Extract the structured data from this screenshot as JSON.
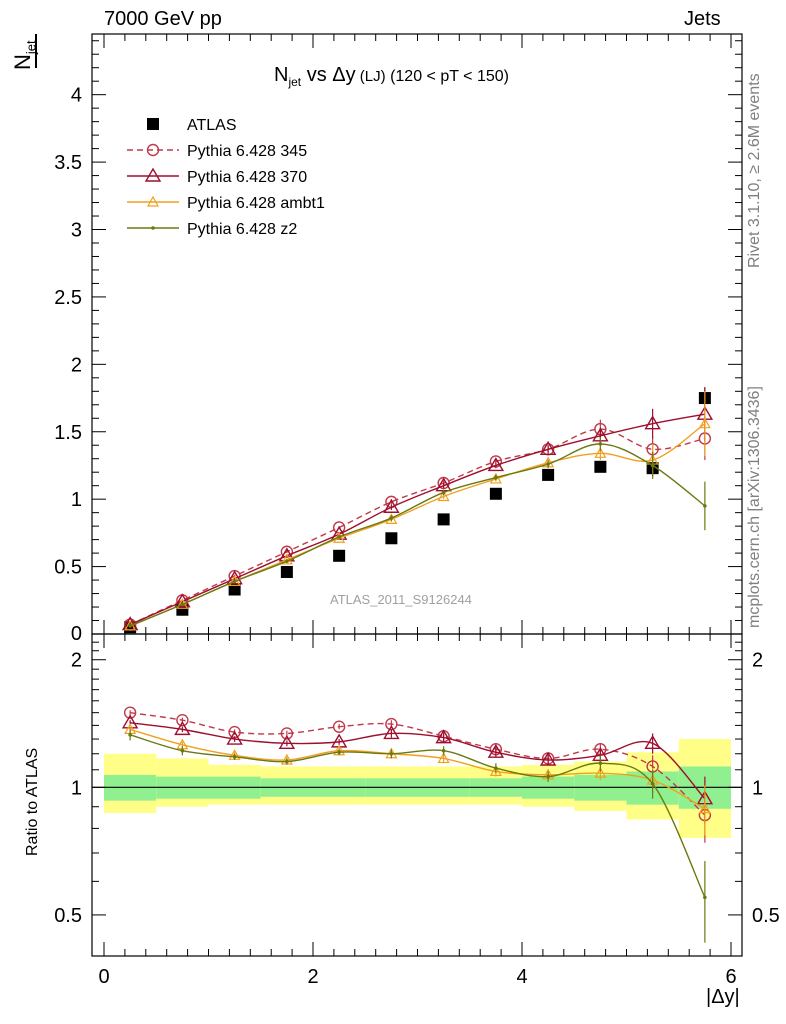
{
  "header": {
    "left_label": "7000 GeV pp",
    "right_label": "Jets"
  },
  "side_labels": {
    "top": "Rivet 3.1.10, ≥ 2.6M events",
    "bottom": "mcplots.cern.ch [arXiv:1306.3436]"
  },
  "chart_data": [
    {
      "type": "scatter",
      "panel": "main",
      "title": "N_jet vs Δy (LJ) (120 < pT < 150)",
      "title_parts": {
        "main": "N",
        "sub": "jet",
        "vs": " vs Δy",
        "small": " (LJ)",
        "range": " (120 < pT < 150)"
      },
      "ylabel": "N_jet",
      "ylabel_parts": {
        "main": "N",
        "sub": "jet"
      },
      "watermark": "ATLAS_2011_S9126244",
      "xlim": [
        0,
        6
      ],
      "ylim": [
        0,
        4.45
      ],
      "yticks": [
        0,
        0.5,
        1,
        1.5,
        2,
        2.5,
        3,
        3.5,
        4
      ],
      "ytick_labels": [
        "0",
        "0.5",
        "1",
        "1.5",
        "2",
        "2.5",
        "3",
        "3.5",
        "4"
      ],
      "x": [
        0.25,
        0.75,
        1.25,
        1.75,
        2.25,
        2.75,
        3.25,
        3.75,
        4.25,
        4.75,
        5.25,
        5.75
      ],
      "legend_position": "top-left",
      "series": [
        {
          "name": "ATLAS",
          "color": "#000000",
          "marker": "square",
          "values": [
            0.05,
            0.18,
            0.33,
            0.46,
            0.58,
            0.71,
            0.85,
            1.04,
            1.18,
            1.24,
            1.23,
            1.75
          ],
          "errors": [
            0.01,
            0.01,
            0.01,
            0.01,
            0.01,
            0.01,
            0.02,
            0.02,
            0.03,
            0.04,
            0.06,
            0.08
          ]
        },
        {
          "name": "Pythia 6.428 345",
          "color": "#c0394b",
          "marker": "open-circle",
          "dashed": true,
          "values": [
            0.07,
            0.25,
            0.43,
            0.61,
            0.79,
            0.98,
            1.12,
            1.28,
            1.37,
            1.52,
            1.37,
            1.45
          ],
          "errors": [
            0.01,
            0.01,
            0.01,
            0.01,
            0.01,
            0.02,
            0.02,
            0.02,
            0.03,
            0.07,
            0.1,
            0.16
          ]
        },
        {
          "name": "Pythia 6.428 370",
          "color": "#9e0e2e",
          "marker": "open-triangle",
          "values": [
            0.07,
            0.24,
            0.41,
            0.58,
            0.74,
            0.94,
            1.1,
            1.25,
            1.37,
            1.47,
            1.56,
            1.63
          ],
          "errors": [
            0.01,
            0.01,
            0.01,
            0.01,
            0.01,
            0.02,
            0.02,
            0.02,
            0.03,
            0.06,
            0.11,
            0.2
          ]
        },
        {
          "name": "Pythia 6.428 ambt1",
          "color": "#f0a020",
          "marker": "small-triangle",
          "values": [
            0.06,
            0.22,
            0.39,
            0.55,
            0.71,
            0.85,
            1.02,
            1.15,
            1.27,
            1.34,
            1.29,
            1.56
          ],
          "errors": [
            0.01,
            0.01,
            0.01,
            0.01,
            0.01,
            0.02,
            0.02,
            0.02,
            0.03,
            0.05,
            0.12,
            0.24
          ]
        },
        {
          "name": "Pythia 6.428 z2",
          "color": "#6b7a10",
          "marker": "dot",
          "values": [
            0.06,
            0.22,
            0.39,
            0.54,
            0.72,
            0.86,
            1.05,
            1.16,
            1.26,
            1.41,
            1.25,
            0.95
          ],
          "errors": [
            0.01,
            0.01,
            0.01,
            0.01,
            0.01,
            0.02,
            0.02,
            0.02,
            0.03,
            0.05,
            0.1,
            0.18
          ]
        }
      ]
    },
    {
      "type": "scatter",
      "panel": "ratio",
      "ylabel": "Ratio to ATLAS",
      "xlabel": "|Δy|",
      "xlim": [
        0,
        6
      ],
      "ylim": [
        0.4,
        2.3
      ],
      "y_scale": "log",
      "xticks": [
        0,
        2,
        4,
        6
      ],
      "xtick_labels": [
        "0",
        "2",
        "4",
        "6"
      ],
      "yticks": [
        0.5,
        1,
        2
      ],
      "ytick_labels": [
        "0.5",
        "1",
        "2"
      ],
      "reference_line": 1,
      "x": [
        0.25,
        0.75,
        1.25,
        1.75,
        2.25,
        2.75,
        3.25,
        3.75,
        4.25,
        4.75,
        5.25,
        5.75
      ],
      "bands": {
        "stat_color": "#90f090",
        "total_color": "#ffff88",
        "stat_lo": [
          0.93,
          0.94,
          0.94,
          0.95,
          0.95,
          0.95,
          0.95,
          0.95,
          0.94,
          0.93,
          0.91,
          0.89
        ],
        "stat_hi": [
          1.07,
          1.06,
          1.06,
          1.05,
          1.05,
          1.05,
          1.05,
          1.05,
          1.06,
          1.07,
          1.09,
          1.12
        ],
        "total_lo": [
          0.87,
          0.9,
          0.91,
          0.91,
          0.91,
          0.91,
          0.91,
          0.91,
          0.9,
          0.88,
          0.84,
          0.76
        ],
        "total_hi": [
          1.2,
          1.17,
          1.13,
          1.12,
          1.12,
          1.12,
          1.12,
          1.12,
          1.13,
          1.15,
          1.21,
          1.3
        ]
      },
      "series": [
        {
          "name": "Pythia 6.428 345",
          "values": [
            1.5,
            1.44,
            1.35,
            1.34,
            1.39,
            1.41,
            1.32,
            1.23,
            1.17,
            1.23,
            1.12,
            0.86
          ],
          "errors": [
            0.02,
            0.02,
            0.02,
            0.02,
            0.02,
            0.03,
            0.03,
            0.03,
            0.03,
            0.04,
            0.07,
            0.12
          ]
        },
        {
          "name": "Pythia 6.428 370",
          "values": [
            1.42,
            1.37,
            1.3,
            1.27,
            1.28,
            1.34,
            1.31,
            1.21,
            1.16,
            1.19,
            1.27,
            0.94
          ],
          "errors": [
            0.02,
            0.02,
            0.02,
            0.02,
            0.02,
            0.03,
            0.03,
            0.03,
            0.03,
            0.04,
            0.07,
            0.12
          ]
        },
        {
          "name": "Pythia 6.428 ambt1",
          "values": [
            1.37,
            1.26,
            1.19,
            1.16,
            1.22,
            1.2,
            1.17,
            1.09,
            1.07,
            1.08,
            1.04,
            0.89
          ],
          "errors": [
            0.02,
            0.02,
            0.02,
            0.02,
            0.02,
            0.03,
            0.03,
            0.03,
            0.03,
            0.04,
            0.07,
            0.12
          ]
        },
        {
          "name": "Pythia 6.428 z2",
          "values": [
            1.33,
            1.22,
            1.18,
            1.15,
            1.21,
            1.2,
            1.22,
            1.11,
            1.06,
            1.14,
            1.02,
            0.55
          ],
          "errors": [
            0.04,
            0.03,
            0.02,
            0.02,
            0.02,
            0.03,
            0.03,
            0.03,
            0.03,
            0.05,
            0.08,
            0.12
          ]
        }
      ]
    }
  ]
}
